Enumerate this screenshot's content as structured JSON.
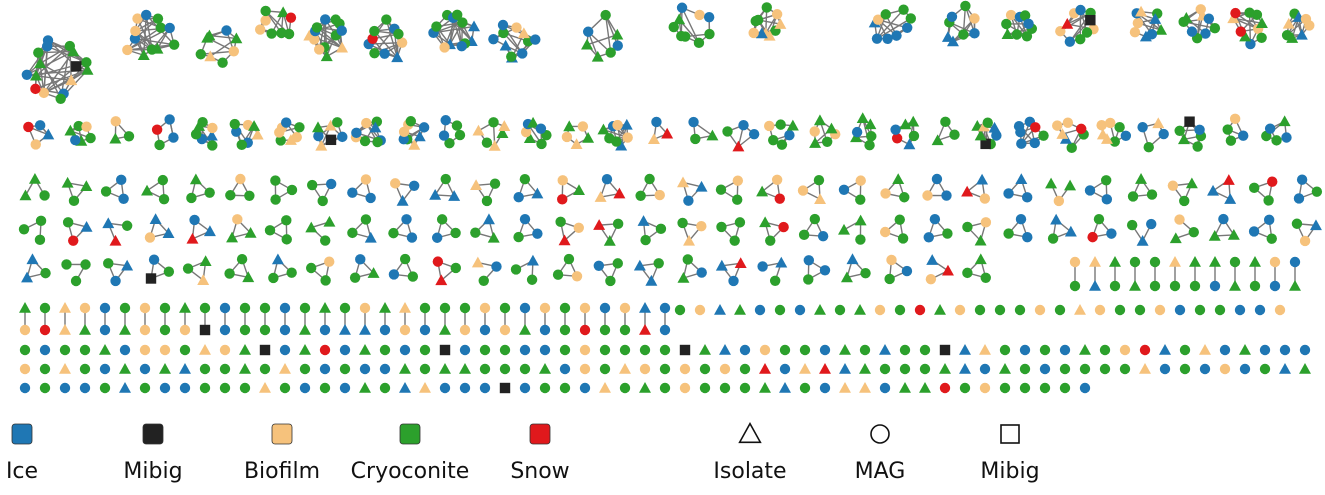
{
  "legend": {
    "sources": [
      {
        "label": "Ice",
        "color": "#1f77b4"
      },
      {
        "label": "Mibig",
        "color": "#222222"
      },
      {
        "label": "Biofilm",
        "color": "#f6c27c"
      },
      {
        "label": "Cryoconite",
        "color": "#2ca02c"
      },
      {
        "label": "Snow",
        "color": "#e0191c"
      }
    ],
    "types": [
      {
        "label": "Isolate",
        "shape": "triangle"
      },
      {
        "label": "MAG",
        "shape": "circle"
      },
      {
        "label": "Mibig",
        "shape": "square"
      }
    ]
  }
}
